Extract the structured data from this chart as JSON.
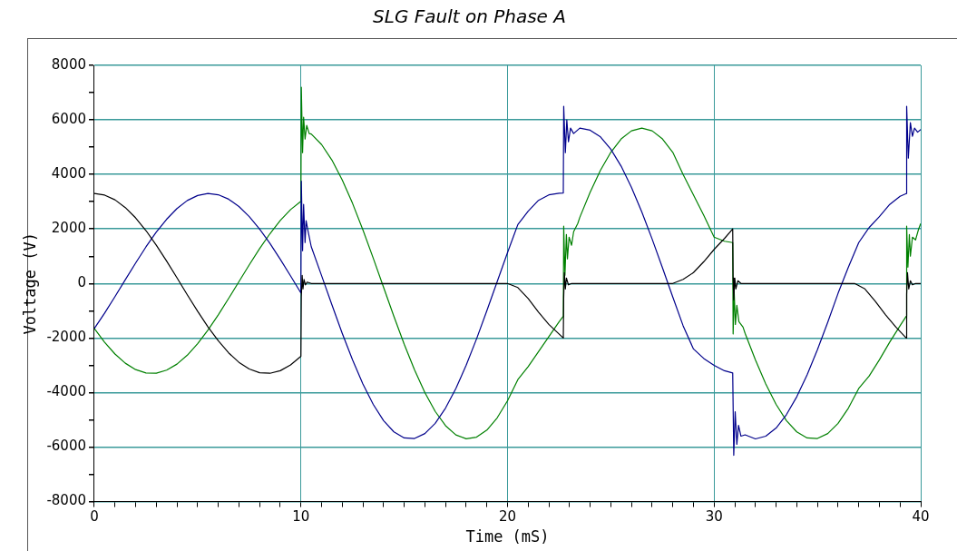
{
  "chart_data": {
    "type": "line",
    "title": "SLG Fault on Phase A",
    "xlabel": "Time (mS)",
    "ylabel": "Voltage (V)",
    "xlim": [
      0,
      40
    ],
    "ylim": [
      -8000,
      8000
    ],
    "xticks": [
      0,
      {
        "value": 1,
        "label": null
      },
      {
        "value": 2,
        "label": null
      },
      {
        "value": 3,
        "label": null
      },
      {
        "value": 4,
        "label": null
      },
      {
        "value": 5,
        "label": null
      },
      {
        "value": 6,
        "label": null
      },
      {
        "value": 7,
        "label": null
      },
      {
        "value": 8,
        "label": null
      },
      {
        "value": 9,
        "label": null
      },
      10,
      {
        "value": 11,
        "label": null
      },
      {
        "value": 12,
        "label": null
      },
      {
        "value": 13,
        "label": null
      },
      {
        "value": 14,
        "label": null
      },
      {
        "value": 15,
        "label": null
      },
      {
        "value": 16,
        "label": null
      },
      {
        "value": 17,
        "label": null
      },
      {
        "value": 18,
        "label": null
      },
      {
        "value": 19,
        "label": null
      },
      20,
      {
        "value": 21,
        "label": null
      },
      {
        "value": 22,
        "label": null
      },
      {
        "value": 23,
        "label": null
      },
      {
        "value": 24,
        "label": null
      },
      {
        "value": 25,
        "label": null
      },
      {
        "value": 26,
        "label": null
      },
      {
        "value": 27,
        "label": null
      },
      {
        "value": 28,
        "label": null
      },
      {
        "value": 29,
        "label": null
      },
      30,
      {
        "value": 31,
        "label": null
      },
      {
        "value": 32,
        "label": null
      },
      {
        "value": 33,
        "label": null
      },
      {
        "value": 34,
        "label": null
      },
      {
        "value": 35,
        "label": null
      },
      {
        "value": 36,
        "label": null
      },
      {
        "value": 37,
        "label": null
      },
      {
        "value": 38,
        "label": null
      },
      {
        "value": 39,
        "label": null
      },
      40
    ],
    "yticks": [
      -8000,
      {
        "value": -7000,
        "label": null
      },
      -6000,
      {
        "value": -5000,
        "label": null
      },
      -4000,
      {
        "value": -3000,
        "label": null
      },
      -2000,
      {
        "value": -1000,
        "label": null
      },
      0,
      {
        "value": 1000,
        "label": null
      },
      2000,
      {
        "value": 3000,
        "label": null
      },
      4000,
      {
        "value": 5000,
        "label": null
      },
      6000,
      {
        "value": 7000,
        "label": null
      },
      8000
    ],
    "grid": true,
    "marker": "none",
    "line_style": "solid",
    "series": [
      {
        "color": "#000000",
        "x": [
          0,
          0.5,
          1,
          1.5,
          2,
          2.5,
          3,
          3.5,
          4,
          4.5,
          5,
          5.5,
          6,
          6.5,
          7,
          7.5,
          8,
          8.5,
          9,
          9.5,
          10,
          10.02,
          10.06,
          10.1,
          10.15,
          10.22,
          10.3,
          10.5,
          20,
          20.5,
          21,
          21.5,
          22,
          22.7,
          22.72,
          22.75,
          22.8,
          22.85,
          22.95,
          23.1,
          28,
          28.5,
          29,
          29.5,
          30,
          30.5,
          30.9,
          30.92,
          30.95,
          31,
          31.05,
          31.15,
          31.3,
          36.8,
          37.3,
          37.8,
          38.3,
          38.8,
          39.3,
          39.32,
          39.36,
          39.42,
          39.5,
          39.6,
          39.75,
          40
        ],
        "values": [
          3300,
          3241,
          3069,
          2785,
          2406,
          1940,
          1406,
          822,
          208,
          -413,
          -1020,
          -1591,
          -2102,
          -2544,
          -2891,
          -3138,
          -3274,
          -3293,
          -3198,
          -2987,
          -2670,
          -500,
          300,
          -200,
          150,
          -50,
          50,
          0,
          0,
          -150,
          -550,
          -1050,
          -1500,
          -2000,
          -500,
          400,
          -200,
          200,
          -50,
          0,
          0,
          150,
          400,
          800,
          1250,
          1650,
          2000,
          200,
          -600,
          200,
          -200,
          100,
          0,
          0,
          -200,
          -650,
          -1150,
          -1600,
          -2000,
          -400,
          400,
          -200,
          100,
          -50,
          0,
          0
        ]
      },
      {
        "color": "#00008b",
        "x": [
          0,
          0.5,
          1,
          1.5,
          2,
          2.5,
          3,
          3.5,
          4,
          4.5,
          5,
          5.5,
          6,
          6.5,
          7,
          7.5,
          8,
          8.5,
          9,
          9.5,
          10,
          10.02,
          10.08,
          10.13,
          10.2,
          10.25,
          10.35,
          10.5,
          11,
          11.5,
          12,
          12.5,
          13,
          13.5,
          14,
          14.5,
          15,
          15.5,
          16,
          16.5,
          17,
          17.5,
          18,
          18.5,
          19,
          19.5,
          20,
          20.5,
          21,
          21.5,
          22,
          22.5,
          22.7,
          22.72,
          22.8,
          22.87,
          22.95,
          23.05,
          23.2,
          23.5,
          24,
          24.5,
          25,
          25.5,
          26,
          26.5,
          27,
          27.5,
          28,
          28.5,
          29,
          29.5,
          30,
          30.5,
          30.9,
          30.95,
          31.02,
          31.1,
          31.18,
          31.3,
          31.5,
          32,
          32.5,
          33,
          33.5,
          34,
          34.5,
          35,
          35.5,
          36,
          36.5,
          37,
          37.5,
          38,
          38.5,
          39,
          39.3,
          39.32,
          39.4,
          39.5,
          39.6,
          39.7,
          39.85,
          40
        ],
        "values": [
          -1650,
          -1086,
          -482,
          139,
          752,
          1343,
          1884,
          2356,
          2749,
          3043,
          3227,
          3300,
          3254,
          3092,
          2822,
          2452,
          1997,
          1469,
          888,
          277,
          -347,
          3750,
          1200,
          2900,
          1500,
          2300,
          1900,
          1350,
          288,
          -783,
          -1828,
          -2806,
          -3686,
          -4436,
          -5028,
          -5442,
          -5663,
          -5684,
          -5503,
          -5128,
          -4570,
          -3851,
          -2996,
          -2033,
          -999,
          70,
          1136,
          2162,
          2650,
          3050,
          3250,
          3310,
          3320,
          6500,
          4800,
          6000,
          5200,
          5700,
          5500,
          5700,
          5621,
          5377,
          4925,
          4302,
          3524,
          2623,
          1629,
          576,
          -497,
          -1552,
          -2400,
          -2750,
          -3000,
          -3200,
          -3280,
          -6300,
          -4700,
          -5900,
          -5200,
          -5600,
          -5550,
          -5700,
          -5599,
          -5301,
          -4811,
          -4155,
          -3350,
          -2428,
          -1419,
          -359,
          600,
          1500,
          2050,
          2450,
          2900,
          3200,
          3300,
          6500,
          4600,
          5900,
          5400,
          5700,
          5550,
          5650
        ]
      },
      {
        "color": "#008000",
        "x": [
          0,
          0.5,
          1,
          1.5,
          2,
          2.5,
          3,
          3.5,
          4,
          4.5,
          5,
          5.5,
          6,
          6.5,
          7,
          7.5,
          8,
          8.5,
          9,
          9.5,
          10,
          10.02,
          10.08,
          10.13,
          10.2,
          10.28,
          10.4,
          10.5,
          11,
          11.5,
          12,
          12.5,
          13,
          13.5,
          14,
          14.5,
          15,
          15.5,
          16,
          16.5,
          17,
          17.5,
          18,
          18.5,
          19,
          19.5,
          20,
          20.5,
          21,
          21.5,
          22,
          22.5,
          22.7,
          22.72,
          22.78,
          22.85,
          22.9,
          22.98,
          23.1,
          23.2,
          23.4,
          23.5,
          24,
          24.5,
          25,
          25.5,
          26,
          26.5,
          27,
          27.5,
          28,
          28.5,
          29,
          29.5,
          30,
          30.5,
          30.9,
          30.92,
          30.97,
          31.03,
          31.1,
          31.2,
          31.4,
          31.5,
          32,
          32.5,
          33,
          33.5,
          34,
          34.5,
          35,
          35.5,
          36,
          36.5,
          37,
          37.5,
          38,
          38.5,
          39,
          39.3,
          39.32,
          39.38,
          39.45,
          39.5,
          39.6,
          39.75,
          39.9,
          40
        ],
        "values": [
          -1650,
          -2155,
          -2587,
          -2924,
          -3158,
          -3283,
          -3290,
          -3178,
          -2957,
          -2630,
          -2207,
          -1709,
          -1152,
          -548,
          69,
          686,
          1277,
          1824,
          2310,
          2710,
          3017,
          7200,
          4800,
          6100,
          5300,
          5800,
          5500,
          5485,
          5096,
          4527,
          3797,
          2936,
          1968,
          930,
          -139,
          -1204,
          -2227,
          -3170,
          -4004,
          -4692,
          -5216,
          -5554,
          -5696,
          -5636,
          -5377,
          -4926,
          -4302,
          -3524,
          -3050,
          -2500,
          -1950,
          -1400,
          -1200,
          2100,
          300,
          1800,
          900,
          1700,
          1400,
          1900,
          2200,
          2428,
          3350,
          4155,
          4811,
          5301,
          5599,
          5700,
          5599,
          5301,
          4811,
          4000,
          3250,
          2500,
          1700,
          1550,
          1500,
          -1850,
          -300,
          -1500,
          -800,
          -1400,
          -1600,
          -1828,
          -2806,
          -3686,
          -4436,
          -5028,
          -5442,
          -5663,
          -5684,
          -5503,
          -5128,
          -4570,
          -3851,
          -3400,
          -2800,
          -2150,
          -1550,
          -1200,
          2100,
          600,
          1800,
          1000,
          1700,
          1600,
          2000,
          2200
        ]
      }
    ]
  }
}
